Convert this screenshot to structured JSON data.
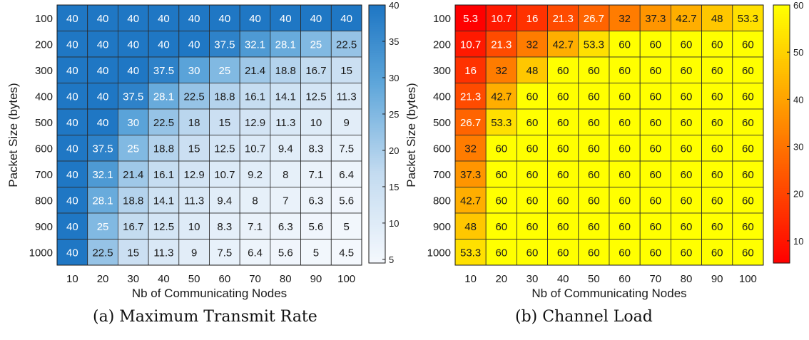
{
  "chart_data": [
    {
      "type": "heatmap",
      "caption": "(a) Maximum Transmit Rate",
      "xlabel": "Nb of Communicating Nodes",
      "ylabel": "Packet Size (bytes)",
      "x_categories": [
        "10",
        "20",
        "30",
        "40",
        "50",
        "60",
        "70",
        "80",
        "90",
        "100"
      ],
      "y_categories": [
        "100",
        "200",
        "300",
        "400",
        "500",
        "600",
        "700",
        "800",
        "900",
        "1000"
      ],
      "values": [
        [
          "40",
          "40",
          "40",
          "40",
          "40",
          "40",
          "40",
          "40",
          "40",
          "40"
        ],
        [
          "40",
          "40",
          "40",
          "40",
          "40",
          "37.5",
          "32.1",
          "28.1",
          "25",
          "22.5"
        ],
        [
          "40",
          "40",
          "40",
          "37.5",
          "30",
          "25",
          "21.4",
          "18.8",
          "16.7",
          "15"
        ],
        [
          "40",
          "40",
          "37.5",
          "28.1",
          "22.5",
          "18.8",
          "16.1",
          "14.1",
          "12.5",
          "11.3"
        ],
        [
          "40",
          "40",
          "30",
          "22.5",
          "18",
          "15",
          "12.9",
          "11.3",
          "10",
          "9"
        ],
        [
          "40",
          "37.5",
          "25",
          "18.8",
          "15",
          "12.5",
          "10.7",
          "9.4",
          "8.3",
          "7.5"
        ],
        [
          "40",
          "32.1",
          "21.4",
          "16.1",
          "12.9",
          "10.7",
          "9.2",
          "8",
          "7.1",
          "6.4"
        ],
        [
          "40",
          "28.1",
          "18.8",
          "14.1",
          "11.3",
          "9.4",
          "8",
          "7",
          "6.3",
          "5.6"
        ],
        [
          "40",
          "25",
          "16.7",
          "12.5",
          "10",
          "8.3",
          "7.1",
          "6.3",
          "5.6",
          "5"
        ],
        [
          "40",
          "22.5",
          "15",
          "11.3",
          "9",
          "7.5",
          "6.4",
          "5.6",
          "5",
          "4.5"
        ]
      ],
      "colorbar": {
        "min": 4.5,
        "max": 40,
        "ticks": [
          "5",
          "10",
          "15",
          "20",
          "25",
          "30",
          "35",
          "40"
        ]
      },
      "colormap": "blues",
      "colors": {
        "low": "#f4f8fd",
        "high": "#1f77c4"
      }
    },
    {
      "type": "heatmap",
      "caption": "(b) Channel Load",
      "xlabel": "Nb of Communicating Nodes",
      "ylabel": "Packet Size (bytes)",
      "x_categories": [
        "10",
        "20",
        "30",
        "40",
        "50",
        "60",
        "70",
        "80",
        "90",
        "100"
      ],
      "y_categories": [
        "100",
        "200",
        "300",
        "400",
        "500",
        "600",
        "700",
        "800",
        "900",
        "1000"
      ],
      "values": [
        [
          "5.3",
          "10.7",
          "16",
          "21.3",
          "26.7",
          "32",
          "37.3",
          "42.7",
          "48",
          "53.3"
        ],
        [
          "10.7",
          "21.3",
          "32",
          "42.7",
          "53.3",
          "60",
          "60",
          "60",
          "60",
          "60"
        ],
        [
          "16",
          "32",
          "48",
          "60",
          "60",
          "60",
          "60",
          "60",
          "60",
          "60"
        ],
        [
          "21.3",
          "42.7",
          "60",
          "60",
          "60",
          "60",
          "60",
          "60",
          "60",
          "60"
        ],
        [
          "26.7",
          "53.3",
          "60",
          "60",
          "60",
          "60",
          "60",
          "60",
          "60",
          "60"
        ],
        [
          "32",
          "60",
          "60",
          "60",
          "60",
          "60",
          "60",
          "60",
          "60",
          "60"
        ],
        [
          "37.3",
          "60",
          "60",
          "60",
          "60",
          "60",
          "60",
          "60",
          "60",
          "60"
        ],
        [
          "42.7",
          "60",
          "60",
          "60",
          "60",
          "60",
          "60",
          "60",
          "60",
          "60"
        ],
        [
          "48",
          "60",
          "60",
          "60",
          "60",
          "60",
          "60",
          "60",
          "60",
          "60"
        ],
        [
          "53.3",
          "60",
          "60",
          "60",
          "60",
          "60",
          "60",
          "60",
          "60",
          "60"
        ]
      ],
      "colorbar": {
        "min": 5.3,
        "max": 60,
        "ticks": [
          "10",
          "20",
          "30",
          "40",
          "50",
          "60"
        ]
      },
      "colormap": "autumn",
      "colors": {
        "low": "#ff0000",
        "high": "#ffff00"
      }
    }
  ]
}
